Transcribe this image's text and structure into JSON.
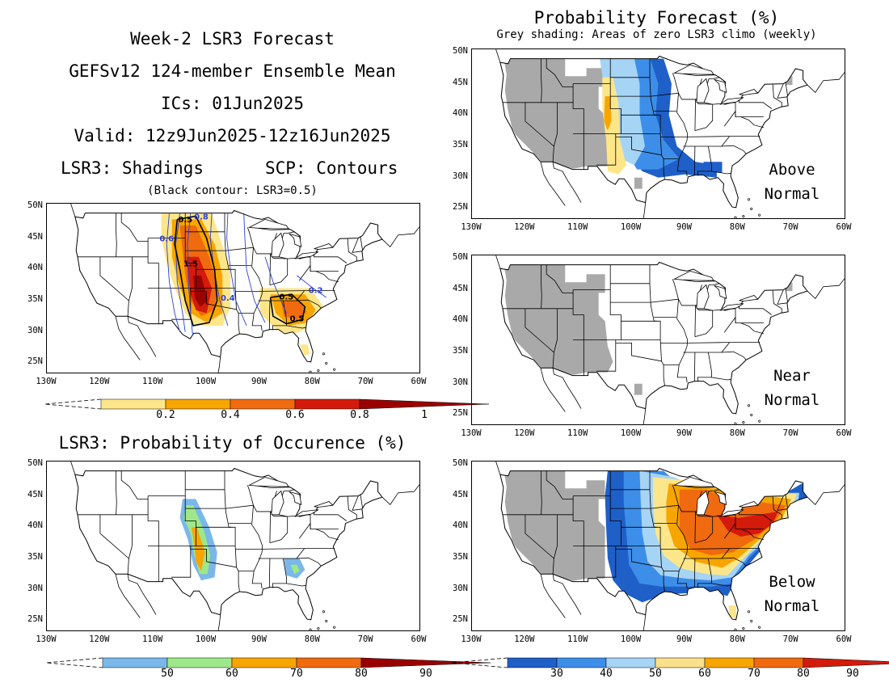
{
  "header": {
    "line1": "Week-2 LSR3 Forecast",
    "line2": "GEFSv12 124-member Ensemble Mean",
    "line3": "ICs: 01Jun2025",
    "line4": "Valid: 12z9Jun2025-12z16Jun2025",
    "line5_left": "LSR3: Shadings",
    "line5_right": "SCP: Contours",
    "line6": "(Black contour: LSR3=0.5)"
  },
  "occurrence_title": "LSR3: Probability of Occurence (%)",
  "prob_title": "Probability Forecast (%)",
  "prob_subtitle": "Grey shading: Areas of zero LSR3 climo (weekly)",
  "lat_labels": [
    "50N",
    "45N",
    "40N",
    "35N",
    "30N",
    "25N"
  ],
  "lon_labels": [
    "130W",
    "120W",
    "110W",
    "100W",
    "90W",
    "80W",
    "70W",
    "60W"
  ],
  "panels": {
    "above": {
      "line1": "Above",
      "line2": "Normal"
    },
    "near": {
      "line1": "Near",
      "line2": "Normal"
    },
    "below": {
      "line1": "Below",
      "line2": "Normal"
    }
  },
  "contour_labels": {
    "black1": "0.5",
    "black2": "0.5",
    "black3": "0.5",
    "black4": "1.5",
    "blue1": "0.6",
    "blue2": "0.8",
    "blue3": "0.2",
    "blue4": "0.4"
  },
  "colorbars": {
    "lsr3": {
      "labels": [
        "0.2",
        "0.4",
        "0.6",
        "0.8",
        "1"
      ],
      "colors": [
        "#fde68a",
        "#f7a500",
        "#f06a10",
        "#d41a0a",
        "#9b0000"
      ]
    },
    "occurrence": {
      "labels": [
        "50",
        "60",
        "70",
        "80",
        "90"
      ],
      "colors": [
        "#7ab8ea",
        "#9ee88a",
        "#f7a500",
        "#f06a10",
        "#9b0000"
      ]
    },
    "prob": {
      "labels": [
        "30",
        "40",
        "50",
        "60",
        "70",
        "80",
        "90"
      ],
      "colors": [
        "#1f5fc8",
        "#3d8ee8",
        "#a6d4f5",
        "#fbe08a",
        "#f7a500",
        "#f06a10",
        "#d41a0a"
      ]
    }
  },
  "colors": {
    "grey": "#a9a9a9",
    "blue_dark": "#1f5fc8",
    "blue_mid": "#3d8ee8",
    "blue_light": "#a6d4f5",
    "yellow": "#fde68a",
    "orange": "#f7a500",
    "orange_red": "#f06a10",
    "red": "#d41a0a",
    "dark_red": "#9b0000",
    "green": "#9ee88a"
  }
}
